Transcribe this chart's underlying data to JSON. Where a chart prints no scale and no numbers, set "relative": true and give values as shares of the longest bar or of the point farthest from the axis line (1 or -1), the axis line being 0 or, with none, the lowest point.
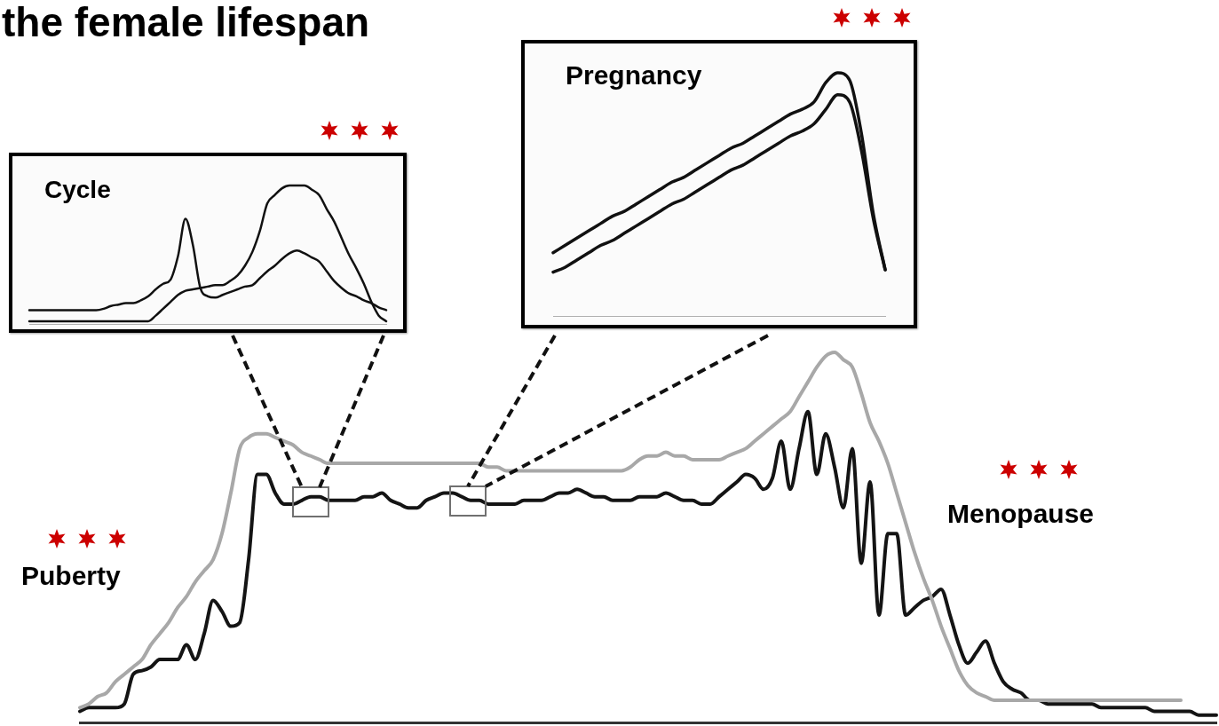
{
  "chart_data": [
    {
      "type": "line",
      "title": "Cycle",
      "annotations": [
        "the female lifespan"
      ],
      "categories": [
        null,
        null,
        null,
        null,
        null,
        null,
        null,
        null,
        null,
        null,
        null,
        null,
        null,
        null,
        null,
        null,
        null,
        null,
        null,
        null,
        null,
        null,
        null,
        null,
        null,
        null,
        null,
        null,
        null,
        null,
        null,
        null,
        null,
        null,
        null,
        null,
        null,
        null,
        null,
        null,
        null,
        null,
        null,
        null,
        null,
        null,
        null,
        null,
        null
      ],
      "series": [
        {
          "color": "#111111",
          "values": [
            0.1,
            0.1,
            0.1,
            0.1,
            0.1,
            0.1,
            0.1,
            0.1,
            0.1,
            0.1,
            0.11,
            0.13,
            0.14,
            0.15,
            0.15,
            0.17,
            0.2,
            0.25,
            0.29,
            0.32,
            0.49,
            0.76,
            0.57,
            0.26,
            0.2,
            0.19,
            0.21,
            0.23,
            0.25,
            0.27,
            0.28,
            0.33,
            0.38,
            0.42,
            0.47,
            0.51,
            0.53,
            0.51,
            0.48,
            0.45,
            0.38,
            0.31,
            0.26,
            0.22,
            0.2,
            0.17,
            0.15,
            0.12,
            0.1
          ]
        },
        {
          "color": "#111111",
          "values": [
            0.02,
            0.02,
            0.02,
            0.02,
            0.02,
            0.02,
            0.02,
            0.02,
            0.02,
            0.02,
            0.02,
            0.02,
            0.02,
            0.02,
            0.02,
            0.02,
            0.02,
            0.06,
            0.11,
            0.16,
            0.21,
            0.24,
            0.25,
            0.26,
            0.27,
            0.28,
            0.28,
            0.31,
            0.35,
            0.42,
            0.52,
            0.67,
            0.87,
            0.93,
            0.98,
            1,
            1,
            1,
            0.97,
            0.93,
            0.83,
            0.74,
            0.62,
            0.5,
            0.4,
            0.29,
            0.16,
            0.06,
            0.02
          ]
        }
      ],
      "relative": true,
      "legend": false,
      "grid": false,
      "tick_labels": false,
      "marker": "none"
    },
    {
      "type": "line",
      "title": "Pregnancy",
      "categories": [
        null,
        null,
        null,
        null,
        null,
        null,
        null,
        null,
        null,
        null,
        null,
        null,
        null,
        null,
        null,
        null,
        null,
        null,
        null,
        null,
        null,
        null,
        null,
        null,
        null,
        null,
        null,
        null,
        null
      ],
      "series": [
        {
          "color": "#111111",
          "values": [
            0.26,
            0.29,
            0.32,
            0.35,
            0.38,
            0.41,
            0.43,
            0.46,
            0.49,
            0.52,
            0.55,
            0.57,
            0.6,
            0.63,
            0.66,
            0.69,
            0.71,
            0.74,
            0.77,
            0.8,
            0.83,
            0.85,
            0.88,
            0.96,
            1,
            0.97,
            0.75,
            0.42,
            0.19
          ]
        },
        {
          "color": "#111111",
          "values": [
            0.18,
            0.2,
            0.23,
            0.26,
            0.29,
            0.31,
            0.34,
            0.37,
            0.4,
            0.43,
            0.46,
            0.48,
            0.51,
            0.54,
            0.57,
            0.6,
            0.62,
            0.65,
            0.68,
            0.71,
            0.74,
            0.76,
            0.79,
            0.85,
            0.91,
            0.88,
            0.68,
            0.4,
            0.19
          ]
        }
      ],
      "relative": true,
      "legend": false,
      "grid": false,
      "tick_labels": false,
      "marker": "none"
    },
    {
      "type": "line",
      "annotations": [
        "Puberty",
        "Menopause"
      ],
      "categories": [
        null,
        null,
        null,
        null,
        null,
        null,
        null,
        null,
        null,
        null,
        null,
        null,
        null,
        null,
        null,
        null,
        null,
        null,
        null,
        null,
        null,
        null,
        null,
        null,
        null,
        null,
        null,
        null,
        null,
        null,
        null,
        null,
        null,
        null,
        null,
        null,
        null,
        null,
        null,
        null,
        null,
        null,
        null,
        null,
        null,
        null,
        null,
        null,
        null,
        null,
        null,
        null,
        null,
        null,
        null,
        null,
        null,
        null,
        null,
        null,
        null,
        null,
        null,
        null,
        null,
        null,
        null,
        null,
        null,
        null,
        null,
        null,
        null,
        null,
        null,
        null,
        null,
        null,
        null,
        null,
        null,
        null,
        null,
        null,
        null,
        null,
        null,
        null,
        null,
        null,
        null,
        null,
        null,
        null,
        null,
        null,
        null,
        null,
        null,
        null,
        null,
        null,
        null,
        null,
        null,
        null,
        null,
        null,
        null,
        null,
        null,
        null,
        null,
        null,
        null,
        null,
        null,
        null,
        null,
        null,
        null,
        null,
        null,
        null,
        null,
        null,
        null,
        null,
        null
      ],
      "series": [
        {
          "color": "#a8a8a8",
          "values": [
            0.04,
            0.05,
            0.07,
            0.08,
            0.11,
            0.13,
            0.15,
            0.17,
            0.21,
            0.24,
            0.27,
            0.31,
            0.34,
            0.38,
            0.41,
            0.44,
            0.51,
            0.62,
            0.74,
            0.77,
            0.78,
            0.78,
            0.77,
            0.76,
            0.75,
            0.73,
            0.72,
            0.71,
            0.7,
            0.7,
            0.7,
            0.7,
            0.7,
            0.7,
            0.7,
            0.7,
            0.7,
            0.7,
            0.7,
            0.7,
            0.7,
            0.7,
            0.7,
            0.7,
            0.7,
            0.7,
            0.69,
            0.69,
            0.68,
            0.68,
            0.68,
            0.68,
            0.68,
            0.68,
            0.68,
            0.68,
            0.68,
            0.68,
            0.68,
            0.68,
            0.68,
            0.68,
            0.69,
            0.71,
            0.72,
            0.72,
            0.73,
            0.72,
            0.72,
            0.71,
            0.71,
            0.71,
            0.71,
            0.72,
            0.73,
            0.74,
            0.76,
            0.78,
            0.8,
            0.82,
            0.84,
            0.88,
            0.92,
            0.96,
            0.99,
            1,
            0.98,
            0.96,
            0.89,
            0.81,
            0.76,
            0.7,
            0.62,
            0.54,
            0.46,
            0.39,
            0.33,
            0.26,
            0.2,
            0.14,
            0.1,
            0.08,
            0.07,
            0.06,
            0.06,
            0.06,
            0.06,
            0.06,
            0.06,
            0.06,
            0.06,
            0.06,
            0.06,
            0.06,
            0.06,
            0.06,
            0.06,
            0.06,
            0.06,
            0.06,
            0.06,
            0.06,
            0.06,
            0.06,
            0.06,
            null,
            null,
            null,
            null
          ]
        },
        {
          "color": "#141414",
          "values": [
            0.03,
            0.04,
            0.04,
            0.04,
            0.04,
            0.05,
            0.13,
            0.14,
            0.15,
            0.17,
            0.17,
            0.17,
            0.21,
            0.17,
            0.24,
            0.33,
            0.3,
            0.26,
            0.27,
            0.44,
            0.67,
            0.67,
            0.62,
            0.59,
            0.59,
            0.6,
            0.61,
            0.61,
            0.6,
            0.6,
            0.6,
            0.6,
            0.61,
            0.61,
            0.62,
            0.6,
            0.59,
            0.58,
            0.58,
            0.6,
            0.61,
            0.62,
            0.62,
            0.61,
            0.6,
            0.6,
            0.59,
            0.59,
            0.59,
            0.59,
            0.6,
            0.6,
            0.6,
            0.61,
            0.62,
            0.62,
            0.63,
            0.62,
            0.61,
            0.61,
            0.6,
            0.6,
            0.6,
            0.61,
            0.61,
            0.61,
            0.62,
            0.61,
            0.6,
            0.6,
            0.59,
            0.59,
            0.61,
            0.63,
            0.65,
            0.67,
            0.66,
            0.63,
            0.66,
            0.76,
            0.63,
            0.74,
            0.84,
            0.67,
            0.78,
            0.69,
            0.58,
            0.74,
            0.43,
            0.65,
            0.29,
            0.51,
            0.51,
            0.29,
            0.31,
            0.33,
            0.34,
            0.36,
            0.29,
            0.21,
            0.16,
            0.19,
            0.22,
            0.16,
            0.11,
            0.09,
            0.08,
            0.06,
            0.06,
            0.05,
            0.05,
            0.05,
            0.05,
            0.05,
            0.05,
            0.04,
            0.04,
            0.04,
            0.04,
            0.04,
            0.04,
            0.03,
            0.03,
            0.03,
            0.03,
            0.03,
            0.02,
            0.02,
            0.02
          ]
        }
      ],
      "relative": true,
      "legend": false,
      "grid": false,
      "tick_labels": false,
      "marker": "none"
    }
  ]
}
